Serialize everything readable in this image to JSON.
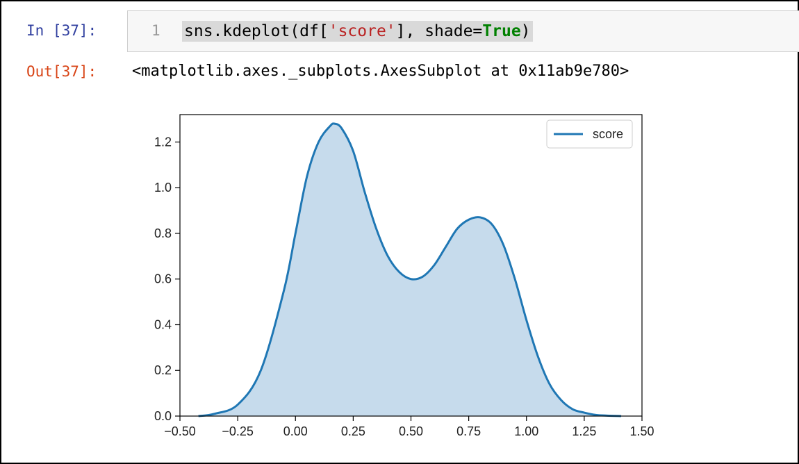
{
  "cell": {
    "in_prompt": "In [37]:",
    "line_number": "1",
    "code": {
      "prefix": "sns.kdeplot(df[",
      "string": "'score'",
      "middle": "], shade=",
      "keyword": "True",
      "suffix": ")"
    },
    "out_prompt": "Out[37]:",
    "output_text": "<matplotlib.axes._subplots.AxesSubplot at 0x11ab9e780>"
  },
  "colors": {
    "line": "#1f77b4",
    "fill": "#c6dbec",
    "in_prompt": "#303f9f",
    "out_prompt": "#d84315"
  },
  "chart_data": {
    "type": "area",
    "title": "",
    "xlabel": "",
    "ylabel": "",
    "xlim": [
      -0.5,
      1.5
    ],
    "ylim": [
      0.0,
      1.32
    ],
    "x_ticks": [
      -0.5,
      -0.25,
      0.0,
      0.25,
      0.5,
      0.75,
      1.0,
      1.25,
      1.5
    ],
    "x_tick_labels": [
      "−0.50",
      "−0.25",
      "0.00",
      "0.25",
      "0.50",
      "0.75",
      "1.00",
      "1.25",
      "1.50"
    ],
    "y_ticks": [
      0.0,
      0.2,
      0.4,
      0.6,
      0.8,
      1.0,
      1.2
    ],
    "y_tick_labels": [
      "0.0",
      "0.2",
      "0.4",
      "0.6",
      "0.8",
      "1.0",
      "1.2"
    ],
    "grid": false,
    "legend_position": "top-right",
    "series": [
      {
        "name": "score",
        "shade": true,
        "x": [
          -0.42,
          -0.35,
          -0.25,
          -0.15,
          -0.05,
          0.0,
          0.05,
          0.1,
          0.15,
          0.17,
          0.2,
          0.25,
          0.3,
          0.35,
          0.4,
          0.45,
          0.5,
          0.55,
          0.6,
          0.65,
          0.7,
          0.75,
          0.8,
          0.85,
          0.9,
          0.95,
          1.0,
          1.05,
          1.1,
          1.15,
          1.2,
          1.25,
          1.3,
          1.35,
          1.41
        ],
        "y": [
          0.0,
          0.01,
          0.05,
          0.2,
          0.55,
          0.8,
          1.05,
          1.2,
          1.27,
          1.28,
          1.26,
          1.16,
          0.98,
          0.82,
          0.7,
          0.63,
          0.6,
          0.61,
          0.66,
          0.74,
          0.82,
          0.86,
          0.87,
          0.84,
          0.75,
          0.6,
          0.42,
          0.26,
          0.14,
          0.07,
          0.03,
          0.015,
          0.005,
          0.002,
          0.0
        ]
      }
    ]
  }
}
